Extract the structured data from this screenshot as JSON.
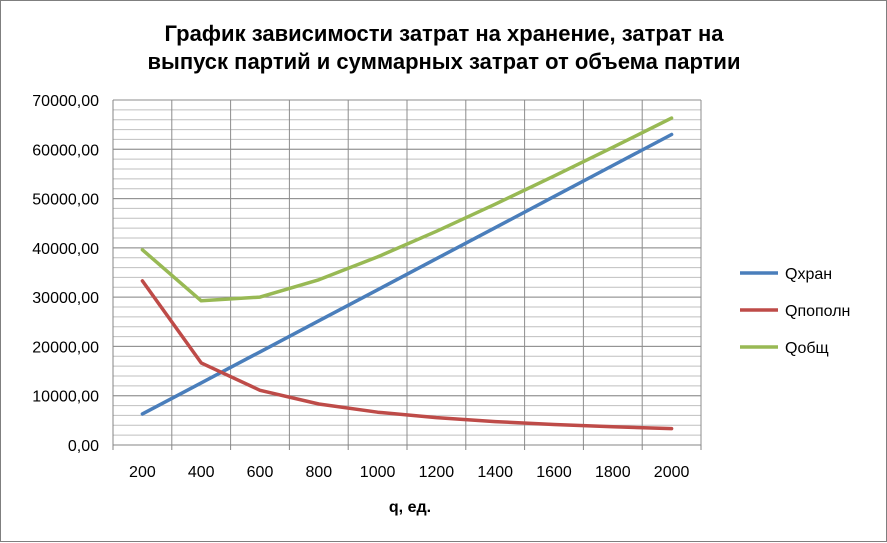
{
  "chart_data": {
    "type": "line",
    "title_lines": [
      "График зависимости затрат на хранение, затрат на",
      "выпуск партий и суммарных затрат от объема  партии"
    ],
    "xlabel": "q, ед.",
    "ylabel": "",
    "categories": [
      "200",
      "400",
      "600",
      "800",
      "1000",
      "1200",
      "1400",
      "1600",
      "1800",
      "2000"
    ],
    "ylim": [
      0,
      70000
    ],
    "y_ticks": [
      "0,00",
      "10000,00",
      "20000,00",
      "30000,00",
      "40000,00",
      "50000,00",
      "60000,00",
      "70000,00"
    ],
    "grid": true,
    "legend_position": "right",
    "series": [
      {
        "name": "Qхран",
        "color": "#4a7ebb",
        "values": [
          6300,
          12600,
          18900,
          25200,
          31500,
          37800,
          44100,
          50400,
          56700,
          63000
        ]
      },
      {
        "name": "Qпополн",
        "color": "#be4b48",
        "values": [
          33300,
          16650,
          11100,
          8325,
          6660,
          5550,
          4757,
          4163,
          3700,
          3330
        ]
      },
      {
        "name": "Qобщ",
        "color": "#98b954",
        "values": [
          39600,
          29250,
          30000,
          33525,
          38160,
          43350,
          48857,
          54563,
          60400,
          66330
        ]
      }
    ]
  }
}
